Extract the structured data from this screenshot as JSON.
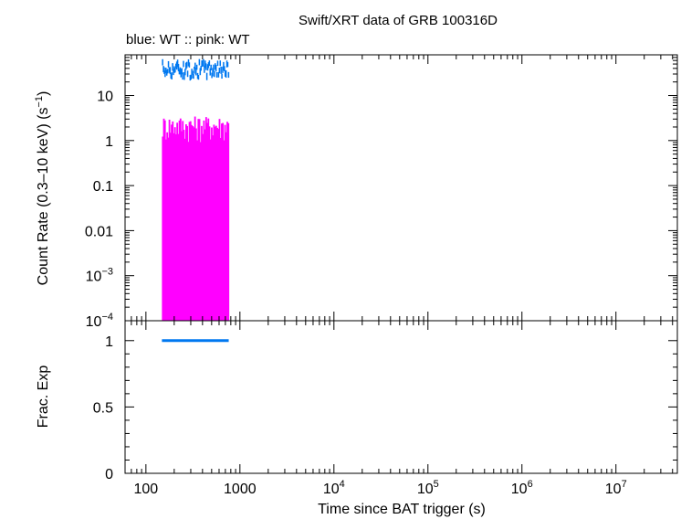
{
  "chart_data": {
    "type": "scatter",
    "title": "Swift/XRT data of GRB 100316D",
    "subtitle": "blue: WT  :: pink: WT",
    "x_scale": "log",
    "xlabel": "Time since BAT trigger (s)",
    "xlim": [
      60,
      45000000
    ],
    "x_ticks": [
      {
        "value": 100,
        "label": "100"
      },
      {
        "value": 1000,
        "label": "1000"
      },
      {
        "value": 10000,
        "label": "10",
        "exp": "4"
      },
      {
        "value": 100000,
        "label": "10",
        "exp": "5"
      },
      {
        "value": 1000000,
        "label": "10",
        "exp": "6"
      },
      {
        "value": 10000000,
        "label": "10",
        "exp": "7"
      }
    ],
    "top_panel": {
      "ylabel": "Count Rate (0.3–10 keV) (s",
      "ylabel_exp": "−1",
      "ylabel_end": ")",
      "y_scale": "log",
      "ylim": [
        0.0001,
        80
      ],
      "y_ticks": [
        {
          "value": 10,
          "label": "10"
        },
        {
          "value": 1,
          "label": "1"
        },
        {
          "value": 0.1,
          "label": "0.1"
        },
        {
          "value": 0.01,
          "label": "0.01"
        },
        {
          "value": 0.001,
          "label": "10",
          "exp": "−3"
        },
        {
          "value": 0.0001,
          "label": "10",
          "exp": "−4"
        }
      ],
      "series": [
        {
          "color": "#0078f0",
          "t_start": 148,
          "t_end": 760,
          "n_bins": 80,
          "rate_low": 25,
          "rate_high": 55
        },
        {
          "color": "#ff00ff",
          "t_start": 148,
          "t_end": 760,
          "n_bins": 60,
          "rate_low": 0.9,
          "rate_high": 3.5,
          "error_floor": 0.0001
        }
      ]
    },
    "bottom_panel": {
      "ylabel": "Frac. Exp",
      "ylim": [
        0,
        1.15
      ],
      "y_ticks": [
        {
          "value": 1,
          "label": "1"
        },
        {
          "value": 0.5,
          "label": "0.5"
        },
        {
          "value": 0,
          "label": "0"
        }
      ],
      "series": [
        {
          "color": "#0078f0",
          "x": [
            148,
            760
          ],
          "y": [
            1,
            1
          ]
        }
      ]
    }
  }
}
